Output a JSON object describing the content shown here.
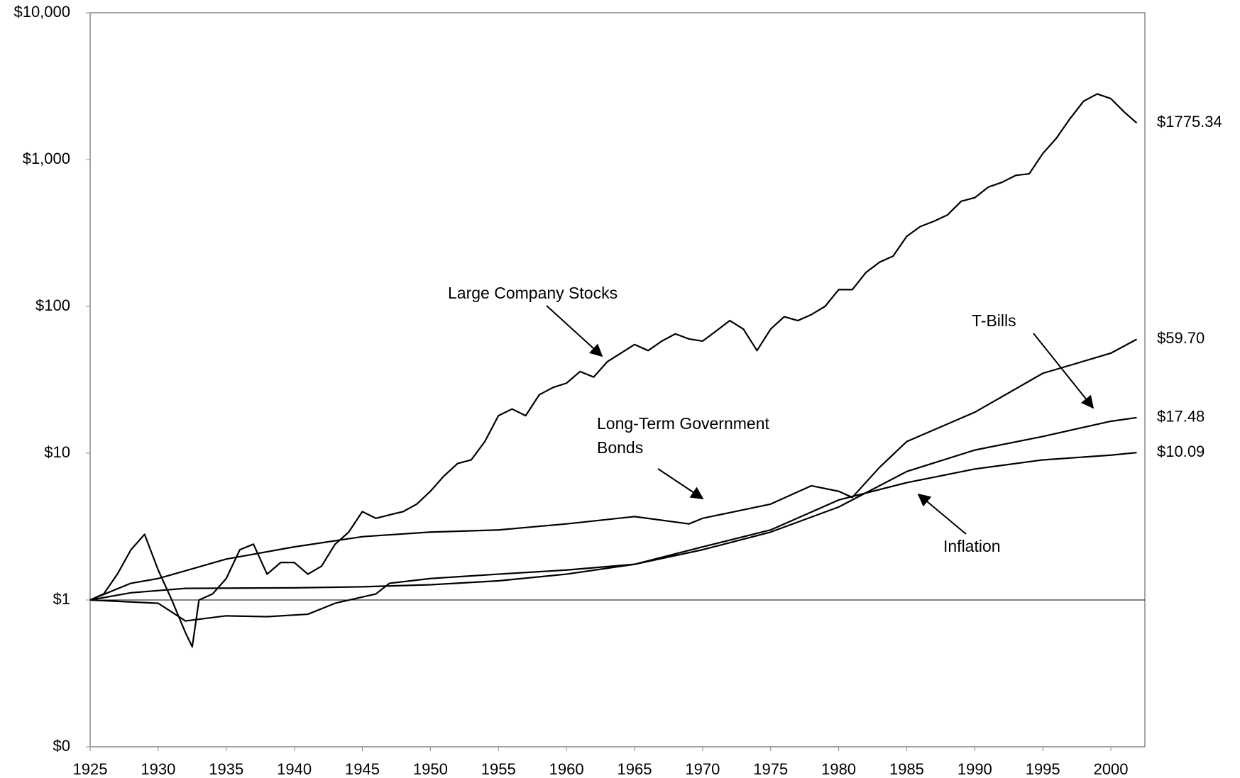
{
  "chart_data": {
    "type": "line",
    "log_scale": true,
    "reference_line": 1,
    "xlim": [
      1925,
      2002.5
    ],
    "xticks": [
      1925,
      1930,
      1935,
      1940,
      1945,
      1950,
      1955,
      1960,
      1965,
      1970,
      1975,
      1980,
      1985,
      1990,
      1995,
      2000
    ],
    "ylim": [
      0.1,
      10000
    ],
    "yticks": [
      {
        "value": 0.1,
        "label": "$0"
      },
      {
        "value": 1,
        "label": "$1"
      },
      {
        "value": 10,
        "label": "$10"
      },
      {
        "value": 100,
        "label": "$100"
      },
      {
        "value": 1000,
        "label": "$1,000"
      },
      {
        "value": 10000,
        "label": "$10,000"
      }
    ],
    "series": [
      {
        "name": "Large Company Stocks",
        "color": "#000000",
        "end_label": "$1775.34",
        "x": [
          1925,
          1926,
          1927,
          1928,
          1929,
          1930,
          1931,
          1932,
          1932.5,
          1933,
          1934,
          1935,
          1936,
          1937,
          1938,
          1939,
          1940,
          1941,
          1942,
          1943,
          1944,
          1945,
          1946,
          1947,
          1948,
          1949,
          1950,
          1951,
          1952,
          1953,
          1954,
          1955,
          1956,
          1957,
          1958,
          1959,
          1960,
          1961,
          1962,
          1963,
          1964,
          1965,
          1966,
          1967,
          1968,
          1969,
          1970,
          1971,
          1972,
          1973,
          1974,
          1975,
          1976,
          1977,
          1978,
          1979,
          1980,
          1981,
          1982,
          1983,
          1984,
          1985,
          1986,
          1987,
          1988,
          1989,
          1990,
          1991,
          1992,
          1993,
          1994,
          1995,
          1996,
          1997,
          1998,
          1999,
          2000,
          2001,
          2001.9
        ],
        "values": [
          1,
          1.1,
          1.5,
          2.2,
          2.8,
          1.6,
          1.0,
          0.6,
          0.48,
          1.0,
          1.1,
          1.4,
          2.2,
          2.4,
          1.5,
          1.8,
          1.8,
          1.5,
          1.7,
          2.4,
          2.9,
          4.0,
          3.6,
          3.8,
          4.0,
          4.5,
          5.5,
          7,
          8.5,
          9,
          12,
          18,
          20,
          18,
          25,
          28,
          30,
          36,
          33,
          42,
          48,
          55,
          50,
          58,
          65,
          60,
          58,
          68,
          80,
          70,
          50,
          70,
          85,
          80,
          88,
          100,
          130,
          130,
          170,
          200,
          220,
          300,
          350,
          380,
          420,
          520,
          550,
          650,
          700,
          780,
          800,
          1100,
          1400,
          1900,
          2500,
          2800,
          2600,
          2100,
          1775.34
        ]
      },
      {
        "name": "Long-Term Government Bonds",
        "color": "#000000",
        "end_label": "$59.70",
        "x": [
          1925,
          1928,
          1930,
          1935,
          1940,
          1945,
          1950,
          1955,
          1960,
          1965,
          1969,
          1970,
          1975,
          1978,
          1980,
          1981,
          1983,
          1985,
          1990,
          1995,
          2000,
          2001.9
        ],
        "values": [
          1,
          1.3,
          1.4,
          1.9,
          2.3,
          2.7,
          2.9,
          3.0,
          3.3,
          3.7,
          3.3,
          3.6,
          4.5,
          6.0,
          5.5,
          5.0,
          8.0,
          12,
          19,
          35,
          48,
          59.7
        ]
      },
      {
        "name": "T-Bills",
        "color": "#000000",
        "end_label": "$17.48",
        "x": [
          1925,
          1928,
          1932,
          1940,
          1945,
          1950,
          1955,
          1960,
          1965,
          1970,
          1975,
          1980,
          1985,
          1990,
          1995,
          2000,
          2001.9
        ],
        "values": [
          1,
          1.12,
          1.2,
          1.21,
          1.23,
          1.27,
          1.35,
          1.5,
          1.75,
          2.2,
          2.9,
          4.3,
          7.5,
          10.5,
          13,
          16.5,
          17.48
        ]
      },
      {
        "name": "Inflation",
        "color": "#000000",
        "end_label": "$10.09",
        "x": [
          1925,
          1928,
          1930,
          1932,
          1935,
          1938,
          1941,
          1943,
          1946,
          1947,
          1950,
          1955,
          1960,
          1965,
          1970,
          1975,
          1980,
          1985,
          1990,
          1995,
          2000,
          2001.9
        ],
        "values": [
          1,
          0.97,
          0.95,
          0.72,
          0.78,
          0.77,
          0.8,
          0.95,
          1.1,
          1.3,
          1.4,
          1.5,
          1.6,
          1.75,
          2.3,
          3.0,
          4.8,
          6.3,
          7.8,
          9.0,
          9.7,
          10.09
        ]
      }
    ]
  }
}
